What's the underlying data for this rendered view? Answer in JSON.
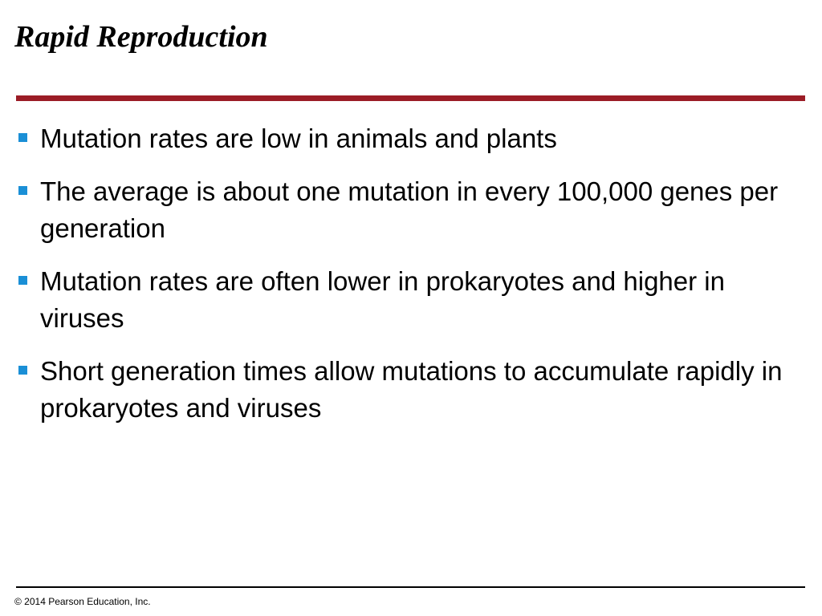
{
  "slide": {
    "title": "Rapid Reproduction",
    "accent_color": "#9b1c26",
    "bullet_color": "#1a8fd6",
    "bullets": [
      {
        "text": "Mutation rates are low in animals and plants"
      },
      {
        "text": "The average is about one mutation in every 100,000 genes per generation"
      },
      {
        "text": "Mutation rates are often lower in prokaryotes and higher in viruses"
      },
      {
        "text": "Short generation times allow mutations to accumulate rapidly in prokaryotes and viruses"
      }
    ]
  },
  "footer": {
    "copyright": "© 2014 Pearson Education, Inc."
  }
}
